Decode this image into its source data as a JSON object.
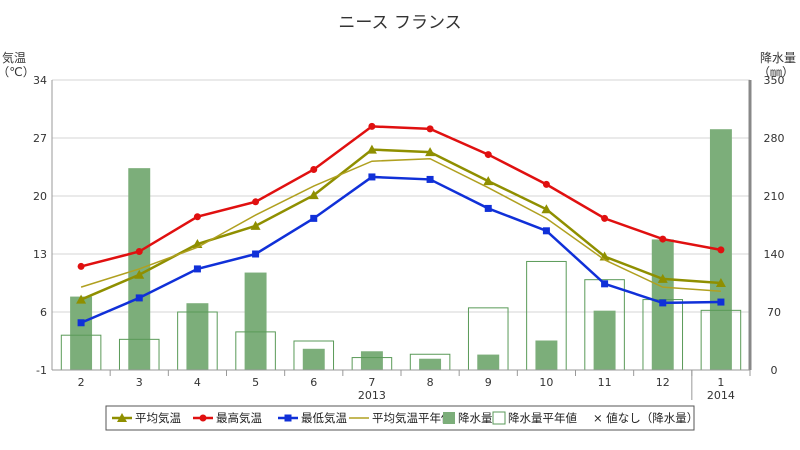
{
  "chart_data": {
    "type": "bar+line",
    "title": "ニース フランス",
    "ylabel_left": [
      "気温",
      "（℃）"
    ],
    "ylabel_right": [
      "降水量",
      "（㎜）"
    ],
    "ylim_left": [
      -1,
      34
    ],
    "ylim_right": [
      0,
      350
    ],
    "yticks_left": [
      -1,
      6,
      13,
      20,
      27,
      34
    ],
    "yticks_right": [
      0,
      70,
      140,
      210,
      280,
      350
    ],
    "categories": [
      "2",
      "3",
      "4",
      "5",
      "6",
      "7",
      "8",
      "9",
      "10",
      "11",
      "12",
      "1"
    ],
    "year_labels": [
      {
        "category": "7",
        "label": "2013"
      },
      {
        "category": "1",
        "label": "2014"
      }
    ],
    "grid": true,
    "legend_position": "bottom",
    "series": [
      {
        "name": "平均気温",
        "axis": "left",
        "type": "line",
        "marker": "triangle",
        "color": "#8f8f00",
        "values": [
          7.5,
          10.5,
          14.2,
          16.4,
          20.1,
          25.6,
          25.3,
          21.8,
          18.4,
          12.7,
          10.0,
          9.5
        ]
      },
      {
        "name": "最高気温",
        "axis": "left",
        "type": "line",
        "marker": "circle",
        "color": "#e01010",
        "values": [
          11.5,
          13.3,
          17.5,
          19.3,
          23.2,
          28.4,
          28.1,
          25.0,
          21.4,
          17.3,
          14.8,
          13.5
        ]
      },
      {
        "name": "最低気温",
        "axis": "left",
        "type": "line",
        "marker": "square",
        "color": "#1030d8",
        "values": [
          4.7,
          7.7,
          11.2,
          13.0,
          17.3,
          22.3,
          22.0,
          18.5,
          15.8,
          9.4,
          7.1,
          7.2
        ]
      },
      {
        "name": "平均気温平年値",
        "axis": "left",
        "type": "line",
        "marker": "none",
        "color": "#b0a020",
        "values": [
          9.0,
          11.2,
          13.8,
          17.7,
          21.2,
          24.2,
          24.5,
          21.0,
          17.3,
          12.3,
          9.0,
          8.5
        ]
      },
      {
        "name": "降水量",
        "axis": "right",
        "type": "bar",
        "style": "filled",
        "color": "#7cae7a",
        "values": [
          88,
          243,
          80,
          117,
          25,
          22,
          13,
          18,
          35,
          71,
          157,
          290
        ]
      },
      {
        "name": "降水量平年値",
        "axis": "right",
        "type": "bar",
        "style": "outline",
        "color": "#5a9a58",
        "values": [
          42,
          37,
          70,
          46,
          35,
          15,
          19,
          75,
          131,
          109,
          85,
          72
        ]
      }
    ],
    "legend": [
      {
        "label": "平均気温",
        "kind": "line-triangle",
        "color": "#8f8f00"
      },
      {
        "label": "最高気温",
        "kind": "line-circle",
        "color": "#e01010"
      },
      {
        "label": "最低気温",
        "kind": "line-square",
        "color": "#1030d8"
      },
      {
        "label": "平均気温平年値",
        "kind": "line",
        "color": "#b0a020"
      },
      {
        "label": "降水量",
        "kind": "bar-filled",
        "color": "#7cae7a"
      },
      {
        "label": "降水量平年値",
        "kind": "bar-outline",
        "color": "#5a9a58"
      },
      {
        "label": "× 値なし（降水量）",
        "kind": "text",
        "color": "#333333"
      }
    ]
  }
}
